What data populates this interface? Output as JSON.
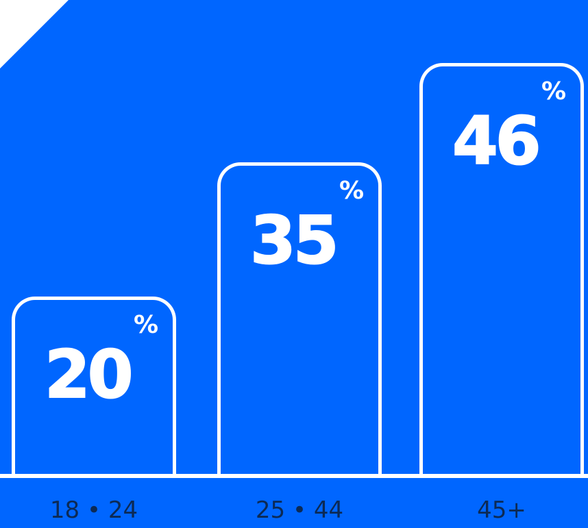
{
  "chart_data": {
    "type": "bar",
    "categories": [
      "18 • 24",
      "25 • 44",
      "45+"
    ],
    "values": [
      20,
      35,
      46
    ],
    "unit_symbol": "%",
    "ylim": [
      0,
      50
    ],
    "grid": false,
    "colors": {
      "background": "#0066FF",
      "bar_outline": "#FFFFFF",
      "value_text": "#FFFFFF",
      "category_text": "#0C2A55"
    }
  }
}
